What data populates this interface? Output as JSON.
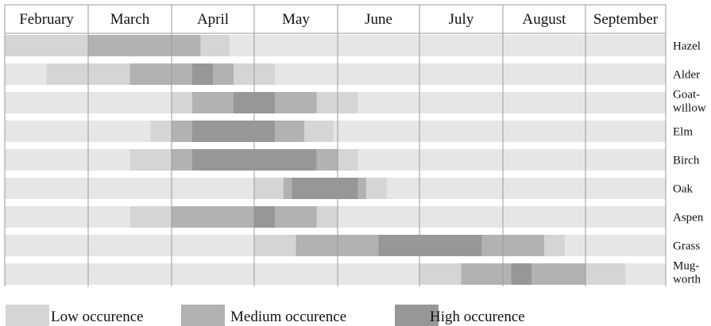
{
  "chart_data": {
    "type": "heatmap",
    "months": [
      "February",
      "March",
      "April",
      "May",
      "June",
      "July",
      "August",
      "September"
    ],
    "rows": [
      {
        "label": [
          "Hazel"
        ],
        "segments": [
          [
            0,
            1,
            "low"
          ],
          [
            1,
            2.35,
            "medium"
          ],
          [
            2.35,
            2.7,
            "low"
          ]
        ]
      },
      {
        "label": [
          "Alder"
        ],
        "segments": [
          [
            0.5,
            1,
            "low"
          ],
          [
            1,
            1.5,
            "low"
          ],
          [
            1.5,
            2.25,
            "medium"
          ],
          [
            2.25,
            2.5,
            "high"
          ],
          [
            2.5,
            2.75,
            "medium"
          ],
          [
            2.75,
            3.25,
            "low"
          ]
        ]
      },
      {
        "label": [
          "Goat-",
          "willow"
        ],
        "segments": [
          [
            2,
            2.25,
            "low"
          ],
          [
            2.25,
            2.75,
            "medium"
          ],
          [
            2.75,
            3.25,
            "high"
          ],
          [
            3.25,
            3.75,
            "medium"
          ],
          [
            3.75,
            4.25,
            "low"
          ]
        ]
      },
      {
        "label": [
          "Elm"
        ],
        "segments": [
          [
            1.75,
            2,
            "low"
          ],
          [
            2,
            2.25,
            "medium"
          ],
          [
            2.25,
            3.25,
            "high"
          ],
          [
            3.25,
            3.6,
            "medium"
          ],
          [
            3.6,
            3.95,
            "low"
          ]
        ]
      },
      {
        "label": [
          "Birch"
        ],
        "segments": [
          [
            1.5,
            2,
            "low"
          ],
          [
            2,
            2.25,
            "medium"
          ],
          [
            2.25,
            3.75,
            "high"
          ],
          [
            3.75,
            4,
            "medium"
          ],
          [
            4,
            4.25,
            "low"
          ]
        ]
      },
      {
        "label": [
          "Oak"
        ],
        "segments": [
          [
            3,
            3.35,
            "low"
          ],
          [
            3.35,
            3.45,
            "medium"
          ],
          [
            3.45,
            4.25,
            "high"
          ],
          [
            4.25,
            4.35,
            "medium"
          ],
          [
            4.35,
            4.6,
            "low"
          ]
        ]
      },
      {
        "label": [
          "Aspen"
        ],
        "segments": [
          [
            1.5,
            2,
            "low"
          ],
          [
            2,
            3,
            "medium"
          ],
          [
            3,
            3.25,
            "high"
          ],
          [
            3.25,
            3.75,
            "medium"
          ],
          [
            3.75,
            4,
            "low"
          ]
        ]
      },
      {
        "label": [
          "Grass"
        ],
        "segments": [
          [
            3,
            3.5,
            "low"
          ],
          [
            3.5,
            4.5,
            "medium"
          ],
          [
            4.5,
            5.75,
            "high"
          ],
          [
            5.75,
            6.5,
            "medium"
          ],
          [
            6.5,
            6.75,
            "low"
          ]
        ]
      },
      {
        "label": [
          "Mug-",
          "worth"
        ],
        "segments": [
          [
            5,
            5.5,
            "low"
          ],
          [
            5.5,
            6.1,
            "medium"
          ],
          [
            6.1,
            6.35,
            "high"
          ],
          [
            6.35,
            7,
            "medium"
          ],
          [
            7,
            7.5,
            "low"
          ]
        ]
      }
    ],
    "legend": [
      {
        "key": "low",
        "label": "Low occurence"
      },
      {
        "key": "medium",
        "label": "Medium occurence"
      },
      {
        "key": "high",
        "label": "High occurence"
      }
    ],
    "colors": {
      "background_row": "#e6e6e6",
      "low": "#d5d5d5",
      "medium": "#b2b2b2",
      "high": "#979797",
      "grid": "#9a9a9a"
    }
  }
}
